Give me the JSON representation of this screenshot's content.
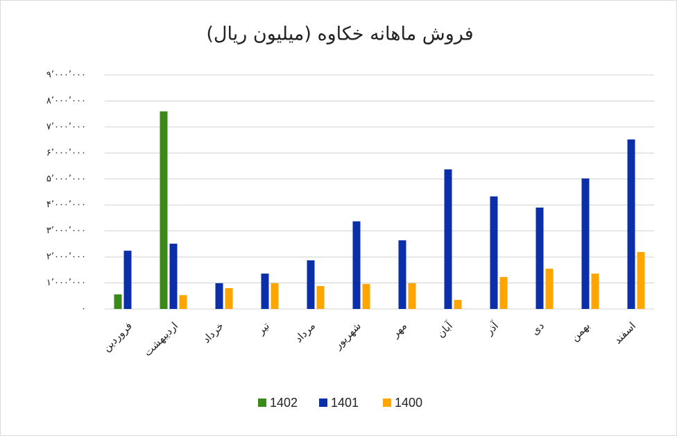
{
  "chart_data": {
    "type": "bar",
    "title": "فروش ماهانه خکاوه (میلیون ریال)",
    "categories": [
      "فروردین",
      "اردیبهشت",
      "خرداد",
      "تیر",
      "مرداد",
      "شهریور",
      "مهر",
      "آبان",
      "آذر",
      "دی",
      "بهمن",
      "اسفند"
    ],
    "series": [
      {
        "name": "1402",
        "color": "#3a8a1a",
        "values": [
          560000,
          7600000,
          null,
          null,
          null,
          null,
          null,
          null,
          null,
          null,
          null,
          null
        ]
      },
      {
        "name": "1401",
        "color": "#0a2fa8",
        "values": [
          2240000,
          2510000,
          990000,
          1360000,
          1870000,
          3370000,
          2640000,
          5370000,
          4330000,
          3900000,
          5020000,
          6520000
        ]
      },
      {
        "name": "1400",
        "color": "#ffa500",
        "values": [
          null,
          530000,
          800000,
          990000,
          880000,
          960000,
          990000,
          350000,
          1230000,
          1550000,
          1360000,
          2190000
        ]
      }
    ],
    "ylim": [
      0,
      9000000
    ],
    "yticks": [
      {
        "value": 0,
        "label": "۰"
      },
      {
        "value": 1000000,
        "label": "۱’۰۰۰’۰۰۰"
      },
      {
        "value": 2000000,
        "label": "۲’۰۰۰’۰۰۰"
      },
      {
        "value": 3000000,
        "label": "۳’۰۰۰’۰۰۰"
      },
      {
        "value": 4000000,
        "label": "۴’۰۰۰’۰۰۰"
      },
      {
        "value": 5000000,
        "label": "۵’۰۰۰’۰۰۰"
      },
      {
        "value": 6000000,
        "label": "۶’۰۰۰’۰۰۰"
      },
      {
        "value": 7000000,
        "label": "۷’۰۰۰’۰۰۰"
      },
      {
        "value": 8000000,
        "label": "۸’۰۰۰’۰۰۰"
      },
      {
        "value": 9000000,
        "label": "۹’۰۰۰’۰۰۰"
      }
    ],
    "grid": true
  }
}
